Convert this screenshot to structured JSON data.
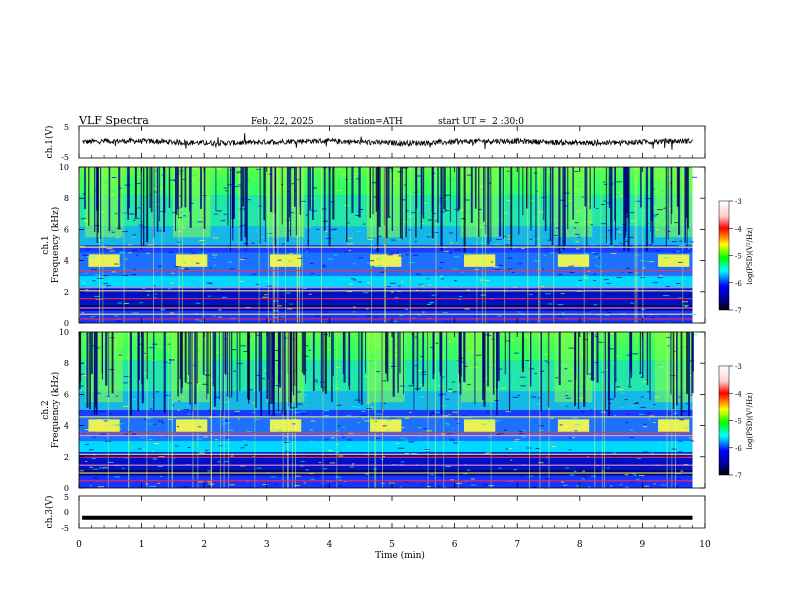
{
  "header": {
    "title": "VLF Spectra",
    "date": "Feb. 22, 2025",
    "station": "station=ATH",
    "start": "start UT =  2 :30:0"
  },
  "colors": {
    "axis": "#000000",
    "waveform": "#000000",
    "colormap": [
      "#ffffff",
      "#ff0000",
      "#ffff00",
      "#00ff00",
      "#00ffff",
      "#0000ff",
      "#000000"
    ]
  },
  "chart_data": [
    {
      "type": "line",
      "panel": "ch1-waveform",
      "ylabel": "ch.1(V)",
      "ylim": [
        -5,
        5
      ],
      "yticks": [
        "5",
        "-5"
      ],
      "xlim": [
        0,
        10
      ],
      "series": [
        {
          "baseline": 0,
          "amplitude": 1.2,
          "note_value": "noisy trace around 0 V"
        }
      ]
    },
    {
      "type": "heatmap",
      "panel": "ch1-spectrogram",
      "ylabel_channel": "ch.1",
      "ylabel": "Frequency (kHz)",
      "ylim": [
        0,
        10
      ],
      "yticks": [
        "0",
        "2",
        "4",
        "6",
        "8",
        "10"
      ],
      "xlim": [
        0,
        10
      ],
      "colorbar": {
        "label": "log(PSD)(V²/Hz)",
        "ticks": [
          "-3",
          "-4",
          "-5",
          "-6",
          "-7"
        ],
        "range": [
          -7,
          -3
        ]
      },
      "bursts_min": [
        0.1,
        1.5,
        3.0,
        4.6,
        6.1,
        7.6,
        9.2
      ],
      "burst_band_khz": [
        3.6,
        4.4
      ],
      "lines_khz": [
        0.3,
        0.6,
        1.0,
        1.6,
        2.1,
        2.3,
        3.4,
        4.9
      ]
    },
    {
      "type": "heatmap",
      "panel": "ch2-spectrogram",
      "ylabel_channel": "ch.2",
      "ylabel": "Frequency (kHz)",
      "ylim": [
        0,
        10
      ],
      "yticks": [
        "0",
        "2",
        "4",
        "6",
        "8",
        "10"
      ],
      "xlim": [
        0,
        10
      ],
      "colorbar": {
        "label": "log(PSD)(V²/Hz)",
        "ticks": [
          "-3",
          "-4",
          "-5",
          "-6",
          "-7"
        ],
        "range": [
          -7,
          -3
        ]
      },
      "bursts_min": [
        0.1,
        1.5,
        3.0,
        4.6,
        6.1,
        7.6,
        9.2
      ],
      "burst_band_khz": [
        3.6,
        4.4
      ],
      "lines_khz": [
        0.5,
        1.0,
        1.5,
        2.0,
        2.2,
        3.4,
        3.6,
        4.6
      ]
    },
    {
      "type": "line",
      "panel": "ch3-waveform",
      "ylabel": "ch.3(V)",
      "ylim": [
        -5,
        5
      ],
      "yticks": [
        "5",
        "0",
        "-5"
      ],
      "xlim": [
        0,
        10
      ],
      "series": [
        {
          "constant": -1.8
        }
      ]
    }
  ],
  "xaxis": {
    "label": "Time (min)",
    "ticks": [
      "0",
      "1",
      "2",
      "3",
      "4",
      "5",
      "6",
      "7",
      "8",
      "9",
      "10"
    ],
    "data_end_min": 9.8
  }
}
